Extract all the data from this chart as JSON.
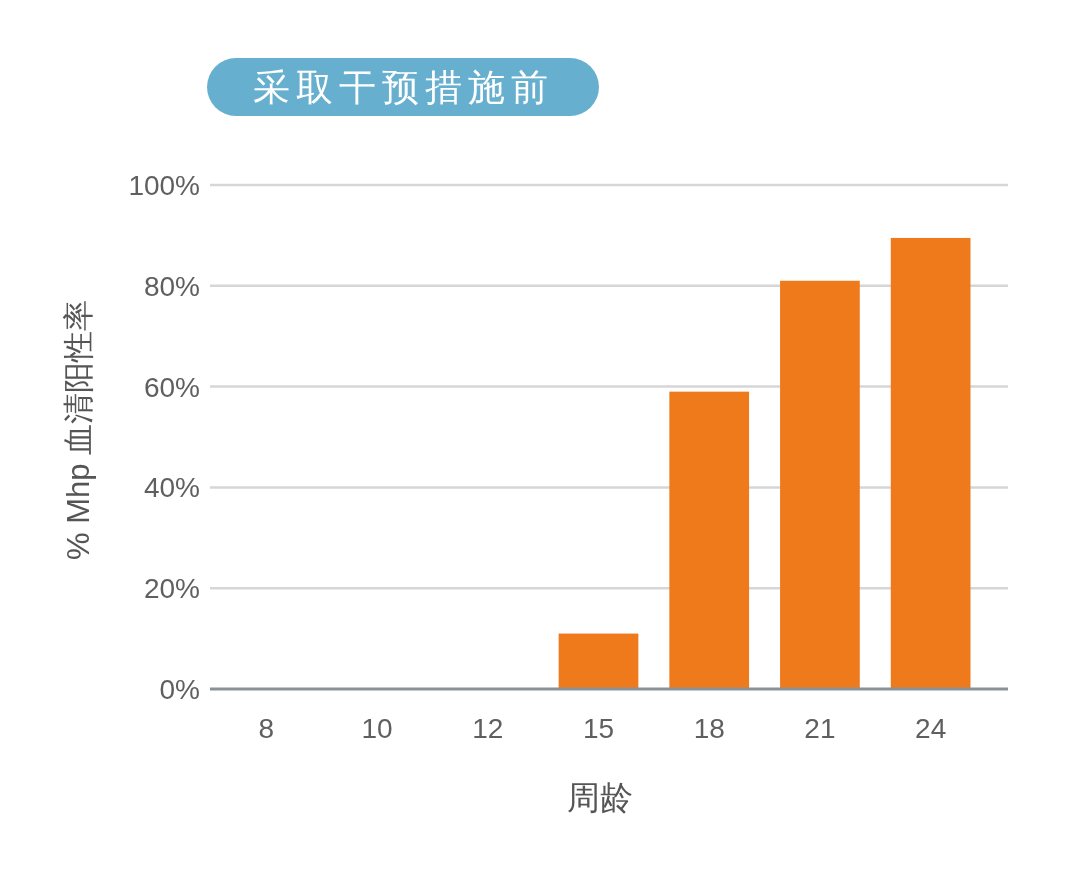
{
  "chart_data": {
    "type": "bar",
    "title": "采取干预措施前",
    "xlabel": "周龄",
    "ylabel": "% Mhp 血清阳性率",
    "categories": [
      "8",
      "10",
      "12",
      "15",
      "18",
      "21",
      "24"
    ],
    "values": [
      0,
      0,
      0,
      11,
      59,
      81,
      89.5
    ],
    "color": "#ee7a1c",
    "ylim": [
      0,
      100
    ],
    "yticks": [
      {
        "value": 0,
        "label": "0%"
      },
      {
        "value": 20,
        "label": "20%"
      },
      {
        "value": 40,
        "label": "40%"
      },
      {
        "value": 60,
        "label": "60%"
      },
      {
        "value": 80,
        "label": "80%"
      },
      {
        "value": 100,
        "label": "100%"
      }
    ],
    "grid": "y"
  }
}
